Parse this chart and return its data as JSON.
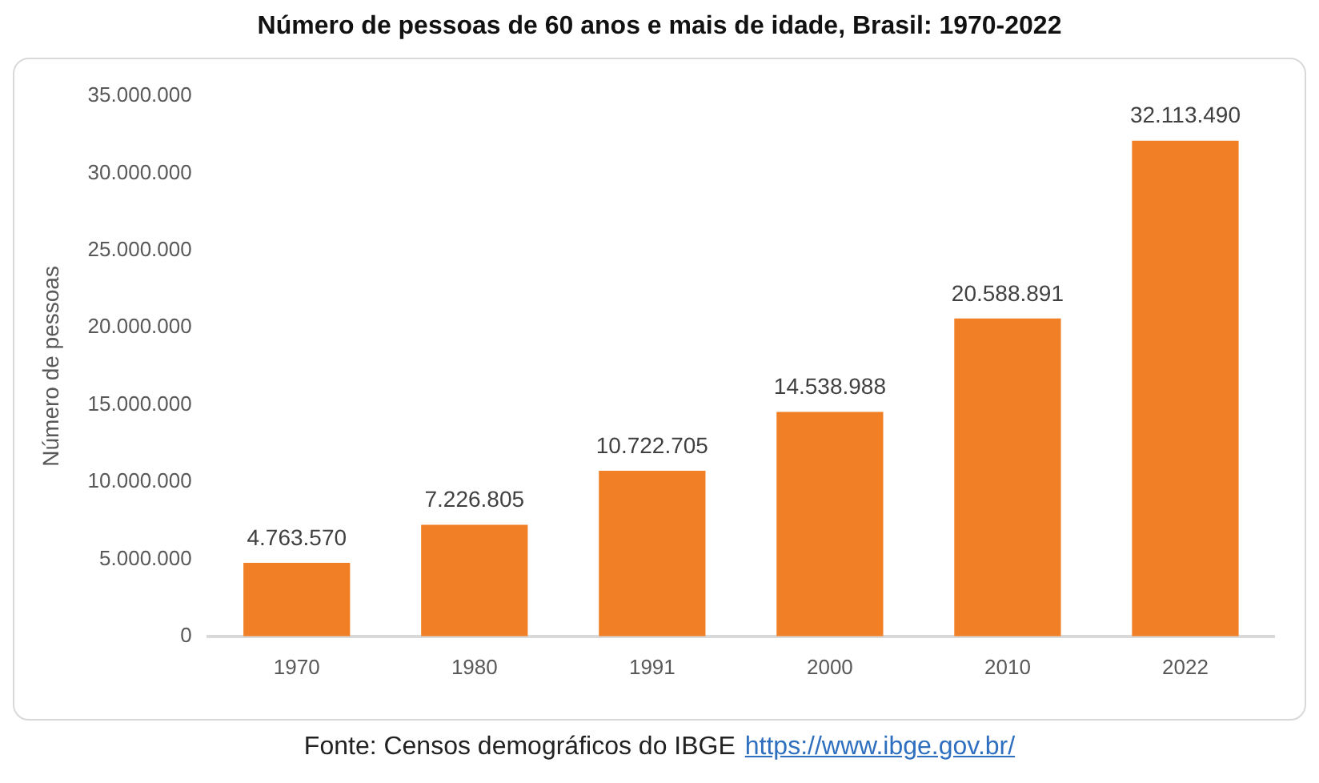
{
  "chart_data": {
    "type": "bar",
    "title": "Número de pessoas de 60 anos e mais de idade, Brasil: 1970-2022",
    "ylabel": "Número de pessoas",
    "categories": [
      "1970",
      "1980",
      "1991",
      "2000",
      "2010",
      "2022"
    ],
    "values": [
      4763570,
      7226805,
      10722705,
      14538988,
      20588891,
      32113490
    ],
    "value_labels": [
      "4.763.570",
      "7.226.805",
      "10.722.705",
      "14.538.988",
      "20.588.891",
      "32.113.490"
    ],
    "color": "#f07f25",
    "ylim": [
      0,
      35000000
    ],
    "yticks": [
      {
        "value": 0,
        "label": "0"
      },
      {
        "value": 5000000,
        "label": "5.000.000"
      },
      {
        "value": 10000000,
        "label": "10.000.000"
      },
      {
        "value": 15000000,
        "label": "15.000.000"
      },
      {
        "value": 20000000,
        "label": "20.000.000"
      },
      {
        "value": 25000000,
        "label": "25.000.000"
      },
      {
        "value": 30000000,
        "label": "30.000.000"
      },
      {
        "value": 35000000,
        "label": "35.000.000"
      }
    ],
    "grid": false,
    "legend": false,
    "annotations": [
      "Fonte: Censos demográficos do  IBGE",
      "https://www.ibge.gov.br/"
    ]
  }
}
